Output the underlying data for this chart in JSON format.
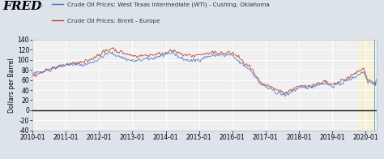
{
  "legend_wti": "Crude Oil Prices: West Texas Intermediate (WTI) - Cushing, Oklahoma",
  "legend_brent": "Crude Oil Prices: Brent - Europe",
  "ylabel": "Dollars per Barrel",
  "wti_color": "#4472c4",
  "brent_color": "#c0392b",
  "background_color": "#dce3ea",
  "plot_bg_color": "#f0f0f0",
  "highlight_bg": "#f5f0d8",
  "ylim": [
    -40,
    140
  ],
  "yticks": [
    -40,
    -20,
    0,
    20,
    40,
    60,
    80,
    100,
    120,
    140
  ],
  "xtick_labels": [
    "2010-01",
    "2011-01",
    "2012-01",
    "2013-01",
    "2014-01",
    "2015-01",
    "2016-01",
    "2017-01",
    "2018-01",
    "2019-01",
    "2020-01"
  ],
  "zero_line_color": "#111111",
  "grid_color": "#ffffff",
  "fred_fontsize": 11,
  "legend_fontsize": 5.2,
  "ylabel_fontsize": 5.5,
  "ytick_fontsize": 5.5,
  "xtick_fontsize": 5.5
}
